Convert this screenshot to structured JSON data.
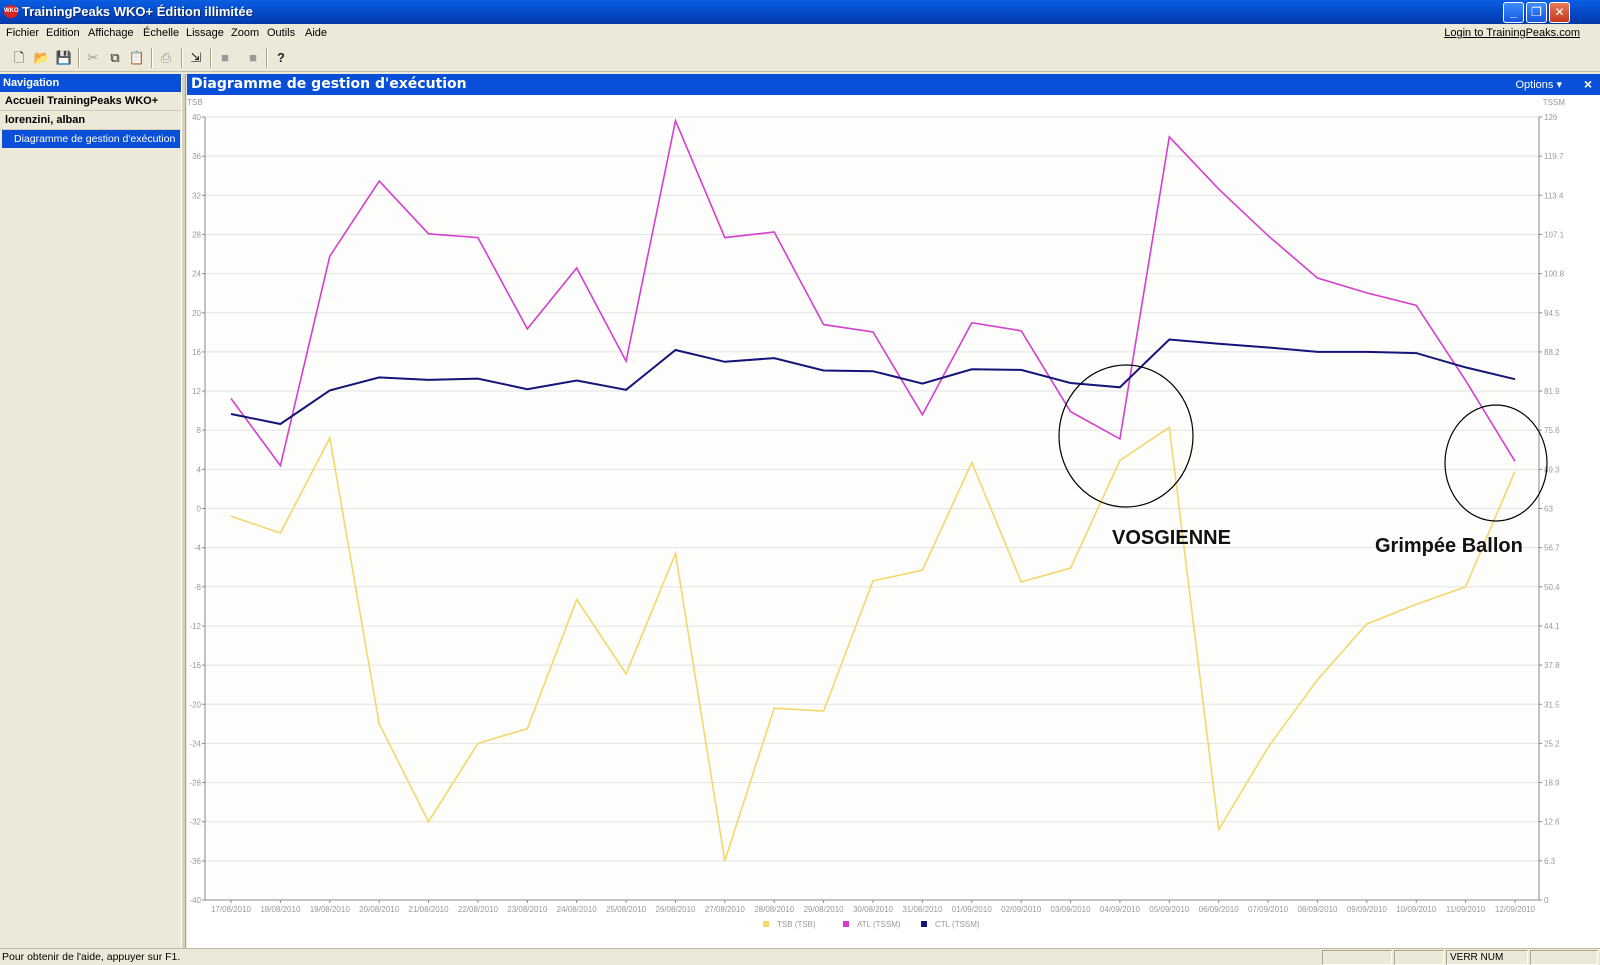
{
  "window": {
    "title": "TrainingPeaks WKO+ Édition illimitée",
    "icon": "wko-app-icon"
  },
  "menu": [
    "Fichier",
    "Edition",
    "Affichage",
    "Échelle",
    "Lissage",
    "Zoom",
    "Outils",
    "Aide"
  ],
  "login_link": "Login to TrainingPeaks.com",
  "toolbar": [
    "new-file-icon",
    "open-folder-icon",
    "save-icon",
    "cut-icon",
    "copy-icon",
    "paste-icon",
    "print-icon",
    "import-icon",
    "grey-square-icon",
    "grey-square-icon",
    "help-icon"
  ],
  "navigation": {
    "header": "Navigation",
    "items": [
      "Accueil TrainingPeaks WKO+",
      "lorenzini, alban"
    ],
    "selected": "Diagramme de gestion d'exécution"
  },
  "panel": {
    "title": "Diagramme de gestion d'exécution",
    "options_label": "Options",
    "close_label": "×"
  },
  "chart_data": {
    "type": "line",
    "left_axis_label": "TSB",
    "right_axis_label": "TSSM",
    "left_ylim": [
      -40,
      40
    ],
    "left_ticks": [
      "40",
      "36",
      "32",
      "28",
      "24",
      "20",
      "16",
      "12",
      "8",
      "4",
      "0",
      "-4",
      "-8",
      "-12",
      "-16",
      "-20",
      "-24",
      "-28",
      "-32",
      "-36",
      "-40"
    ],
    "right_ylim": [
      0,
      126
    ],
    "right_ticks": [
      "126",
      "119.7",
      "113.4",
      "107.1",
      "100.8",
      "94.5",
      "88.2",
      "81.9",
      "75.6",
      "69.3",
      "63",
      "56.7",
      "50.4",
      "44.1",
      "37.8",
      "31.5",
      "25.2",
      "18.9",
      "12.6",
      "6.3",
      "0"
    ],
    "categories": [
      "17/08/2010",
      "18/08/2010",
      "19/08/2010",
      "20/08/2010",
      "21/08/2010",
      "22/08/2010",
      "23/08/2010",
      "24/08/2010",
      "25/08/2010",
      "26/08/2010",
      "27/08/2010",
      "28/08/2010",
      "29/08/2010",
      "30/08/2010",
      "31/08/2010",
      "01/09/2010",
      "02/09/2010",
      "03/09/2010",
      "04/09/2010",
      "05/09/2010",
      "06/09/2010",
      "07/09/2010",
      "08/09/2010",
      "09/09/2010",
      "10/09/2010",
      "11/09/2010",
      "12/09/2010"
    ],
    "grid": true,
    "legend_position": "bottom-center",
    "series": [
      {
        "name": "TSB (TSB)",
        "axis": "left",
        "color": "#f4d76a",
        "values": [
          -0.8,
          -2.5,
          7.2,
          -22,
          -32,
          -24,
          -22.5,
          -9.3,
          -16.9,
          -4.6,
          -36,
          -20.4,
          -20.7,
          -7.4,
          -6.3,
          4.7,
          -7.5,
          -6.1,
          4.9,
          8.3,
          -32.8,
          -24.4,
          -17.5,
          -11.8,
          -9.8,
          -8,
          3.8
        ]
      },
      {
        "name": "ATL (TSSM)",
        "axis": "right",
        "color": "#d43fcf",
        "values": [
          80.7,
          69.9,
          103.6,
          115.7,
          107.2,
          106.6,
          91.9,
          101.7,
          86.7,
          125.4,
          106.6,
          107.5,
          92.6,
          91.4,
          78.1,
          92.9,
          91.6,
          78.6,
          74.2,
          122.8,
          114.4,
          106.9,
          100.1,
          97.7,
          95.7,
          83.6,
          70.6
        ]
      },
      {
        "name": "CTL (TSSM)",
        "axis": "right",
        "color": "#14147a",
        "values": [
          78.2,
          76.6,
          82,
          84.1,
          83.7,
          83.9,
          82.2,
          83.6,
          82.1,
          88.5,
          86.6,
          87.2,
          85.2,
          85.1,
          83.1,
          85.4,
          85.3,
          83.2,
          82.5,
          90.2,
          89.5,
          88.9,
          88.2,
          88.2,
          88,
          85.7,
          83.8
        ]
      }
    ],
    "annotations": [
      {
        "text": "VOSGIENNE",
        "at_category": "04/09/2010",
        "circle": true
      },
      {
        "text": "Grimpée Ballon",
        "at_category": "12/09/2010",
        "circle": true
      }
    ]
  },
  "status": {
    "text": "Pour obtenir de l'aide, appuyer sur F1.",
    "num_lock": "VERR NUM"
  }
}
